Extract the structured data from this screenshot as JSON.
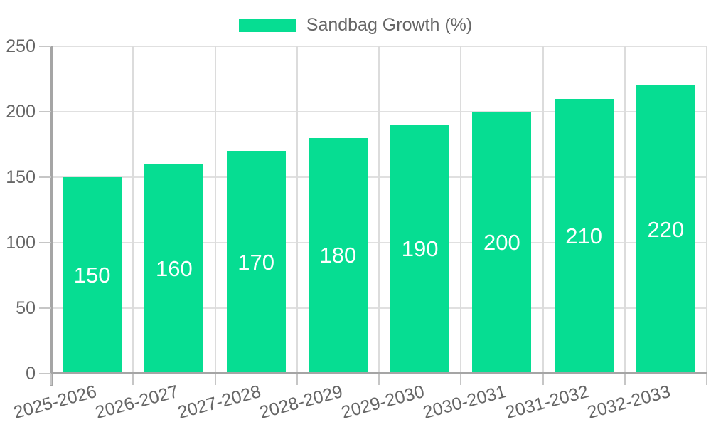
{
  "legend": {
    "label": "Sandbag Growth (%)"
  },
  "chart_data": {
    "type": "bar",
    "title": "",
    "xlabel": "",
    "ylabel": "",
    "categories": [
      "2025-2026",
      "2026-2027",
      "2027-2028",
      "2028-2029",
      "2029-2030",
      "2030-2031",
      "2031-2032",
      "2032-2033"
    ],
    "series": [
      {
        "name": "Sandbag Growth (%)",
        "values": [
          150,
          160,
          170,
          180,
          190,
          200,
          210,
          220
        ]
      }
    ],
    "bar_value_labels": [
      "150",
      "160",
      "170",
      "180",
      "190",
      "200",
      "210",
      "220"
    ],
    "ylim": [
      0,
      250
    ],
    "yticks": [
      0,
      50,
      100,
      150,
      200,
      250
    ],
    "grid": true,
    "legend_position": "top-center",
    "x_label_rotation_deg": -15,
    "colors": {
      "bar": "#06dd92",
      "bar_label_text": "#ffffff",
      "tick_label_text": "#666666",
      "legend_text": "#666666",
      "gridline": "#e0e0e0",
      "axis_line": "#a5a5a5",
      "tick_mark": "#c6c6c6",
      "background": "#ffffff"
    }
  }
}
